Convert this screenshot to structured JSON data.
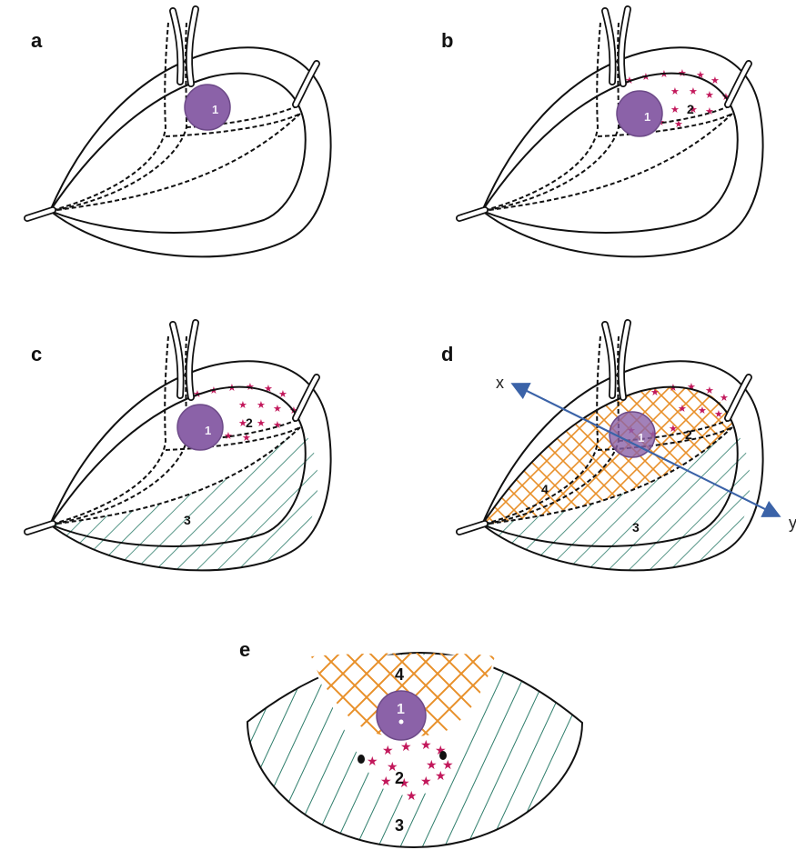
{
  "panels": [
    {
      "label": "a",
      "circle_label": "1"
    },
    {
      "label": "b",
      "circle_label": "1",
      "region_labels": [
        "2"
      ]
    },
    {
      "label": "c",
      "circle_label": "1",
      "region_labels": [
        "2",
        "3"
      ]
    },
    {
      "label": "d",
      "circle_label": "1",
      "region_labels": [
        "2",
        "4",
        "3"
      ],
      "axis_labels": [
        "x",
        "y"
      ]
    },
    {
      "label": "e",
      "region_labels": [
        "1",
        "4",
        "2",
        "3"
      ]
    }
  ],
  "colors": {
    "circle_fill": "#8b62a8",
    "circle_stroke": "#6d4a88",
    "stars": "#c2185b",
    "hatch_green": "#2e7d6b",
    "crosshatch_orange": "#e8902a",
    "axis_blue": "#3b63a8"
  }
}
